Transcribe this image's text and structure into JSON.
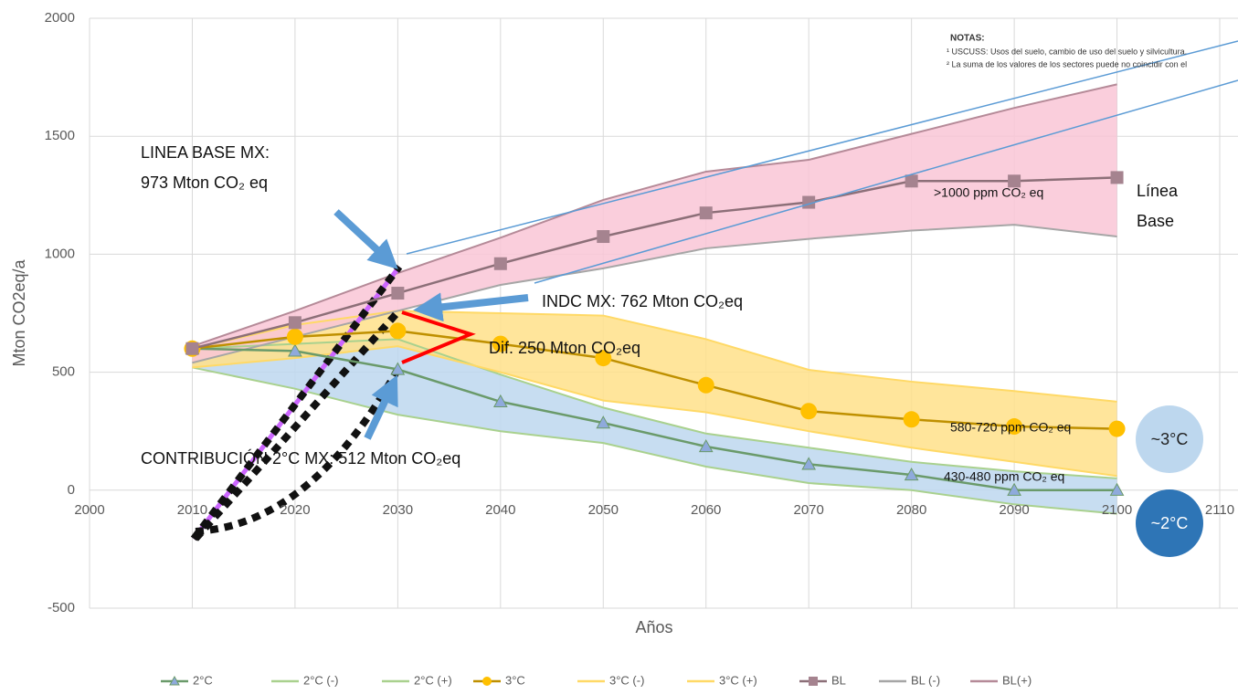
{
  "chart_data": {
    "type": "line",
    "x_label": "Años",
    "y_label": "Mton CO2eq/a",
    "x": [
      2010,
      2020,
      2030,
      2040,
      2050,
      2060,
      2070,
      2080,
      2090,
      2100
    ],
    "xlim": [
      2000,
      2110
    ],
    "xticks": [
      2000,
      2010,
      2020,
      2030,
      2040,
      2050,
      2060,
      2070,
      2080,
      2090,
      2100,
      2110
    ],
    "ylim": [
      -500,
      2000
    ],
    "yticks": [
      -500,
      0,
      500,
      1000,
      1500,
      2000
    ],
    "grid": true,
    "legend": "bottom",
    "series": [
      {
        "name": "2°C",
        "color": "#6a9a6a",
        "marker": "triangle",
        "marker_color": "#8faadc",
        "values": [
          600,
          590,
          512,
          375,
          285,
          185,
          110,
          65,
          0,
          0
        ]
      },
      {
        "name": "2°C (-)",
        "color": "#a9d18e",
        "values": [
          520,
          430,
          320,
          250,
          200,
          100,
          30,
          0,
          -60,
          -100
        ]
      },
      {
        "name": "2°C (+)",
        "color": "#a9d18e",
        "values": [
          600,
          620,
          640,
          490,
          350,
          240,
          180,
          120,
          80,
          50
        ]
      },
      {
        "name": "3°C",
        "color": "#bf9000",
        "marker": "circle",
        "marker_color": "#ffc000",
        "values": [
          600,
          650,
          675,
          620,
          560,
          445,
          335,
          300,
          270,
          260
        ]
      },
      {
        "name": "3°C (-)",
        "color": "#ffd966",
        "values": [
          520,
          560,
          610,
          500,
          380,
          330,
          250,
          180,
          120,
          60
        ]
      },
      {
        "name": "3°C (+)",
        "color": "#ffd966",
        "values": [
          600,
          700,
          760,
          750,
          740,
          640,
          510,
          460,
          420,
          375
        ]
      },
      {
        "name": "BL",
        "color": "#8c6f78",
        "marker": "square",
        "marker_color": "#a5838f",
        "values": [
          600,
          710,
          835,
          960,
          1075,
          1175,
          1220,
          1310,
          1310,
          1325
        ]
      },
      {
        "name": "BL (-)",
        "color": "#a6a6a6",
        "values": [
          540,
          650,
          760,
          870,
          940,
          1025,
          1065,
          1100,
          1125,
          1075
        ]
      },
      {
        "name": "BL(+)",
        "color": "#b58a98",
        "values": [
          610,
          760,
          920,
          1070,
          1230,
          1350,
          1400,
          1510,
          1620,
          1720
        ]
      }
    ],
    "bands": [
      {
        "lower": 1,
        "upper": 2,
        "color": "#bdd7ee"
      },
      {
        "lower": 4,
        "upper": 5,
        "color": "#ffe08a"
      },
      {
        "lower": 7,
        "upper": 8,
        "color": "#f9c5d6"
      }
    ],
    "annotations": {
      "baseline_title": "LINEA BASE MX:",
      "baseline_value": "973 Mton CO₂ eq",
      "indc": "INDC MX:  762 Mton CO₂eq",
      "dif": "Dif. 250 Mton CO₂eq",
      "contrib": "CONTRIBUCIÓN 2°C MX:  512 Mton CO₂eq",
      "bl_band": ">1000 ppm CO₂ eq",
      "band3": "580-720 ppm CO₂ eq",
      "band2": "430-480 ppm CO₂ eq",
      "linea": "Línea",
      "base": "Base",
      "c3": "~3°C",
      "c2": "~2°C"
    },
    "notes": {
      "title": "NOTAS:",
      "lines": [
        "¹ USCUSS: Usos del suelo, cambio de uso del suelo y silvicultura.",
        "² La suma de los valores de los sectores puede no coincidir con el"
      ]
    }
  }
}
